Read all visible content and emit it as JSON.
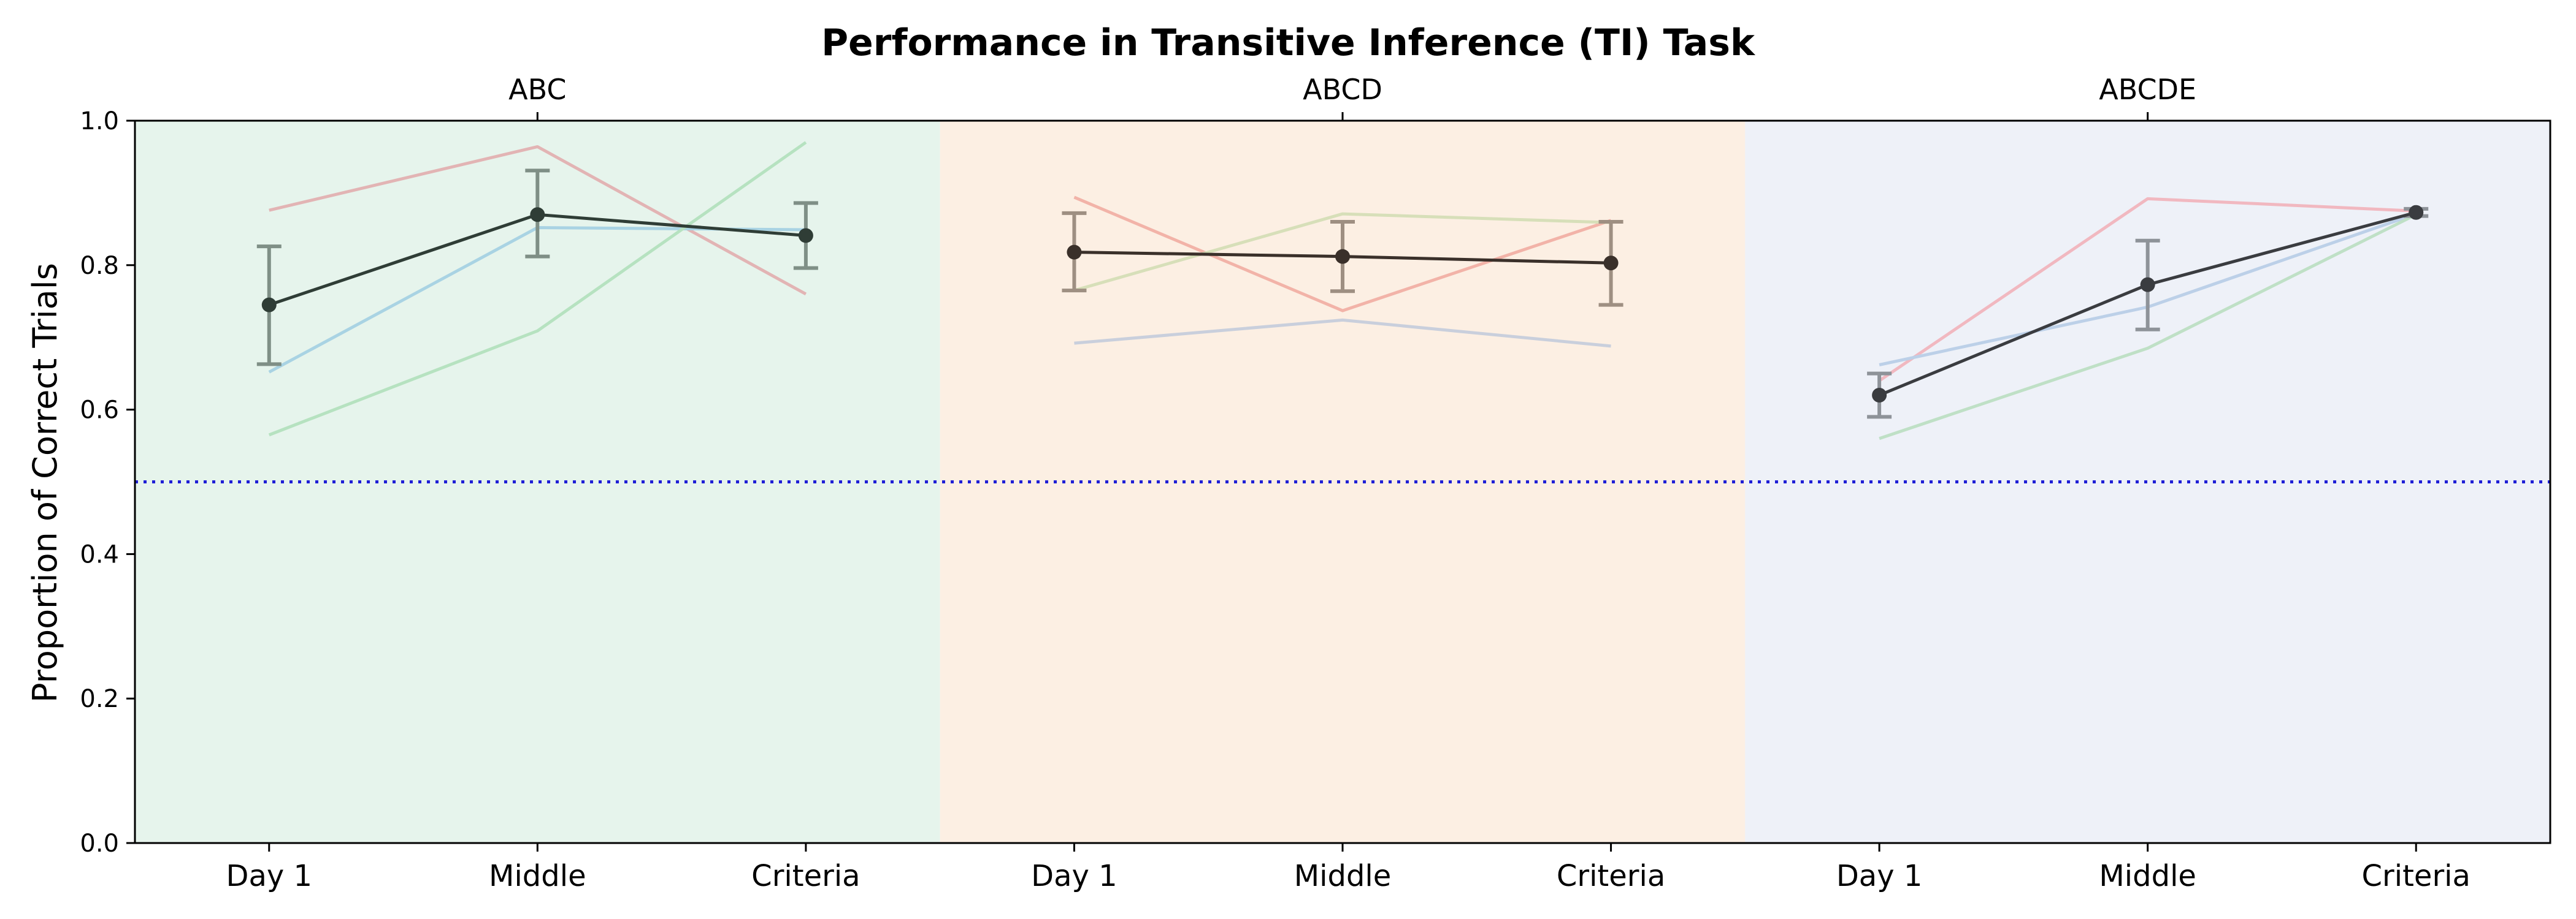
{
  "chart_data": {
    "type": "line",
    "title": "Performance in Transitive Inference (TI) Task",
    "ylabel": "Proportion of Correct Trials",
    "xlabel": "",
    "ylim": [
      0.0,
      1.0
    ],
    "yticks": [
      "0.0",
      "0.2",
      "0.4",
      "0.6",
      "0.8",
      "1.0"
    ],
    "grid": false,
    "reference_line": {
      "y": 0.5,
      "style": "dotted",
      "color": "#1f1fd6"
    },
    "panels": [
      {
        "label": "ABC",
        "background": "#e6f4ec",
        "mean_color": "#2f3d36",
        "errbar_color": "#7f8f86",
        "categories": [
          "Day 1",
          "Middle",
          "Criteria"
        ],
        "mean": [
          0.745,
          0.87,
          0.841
        ],
        "error": [
          [
            0.663,
            0.826
          ],
          [
            0.812,
            0.931
          ],
          [
            0.796,
            0.886
          ]
        ],
        "subjects": [
          {
            "color": "#e2b4b4",
            "values": [
              0.876,
              0.964,
              0.76
            ]
          },
          {
            "color": "#a9d3e3",
            "values": [
              0.652,
              0.852,
              0.849
            ]
          },
          {
            "color": "#b6e2c0",
            "values": [
              0.565,
              0.709,
              0.97
            ]
          }
        ]
      },
      {
        "label": "ABCD",
        "background": "#fcefe3",
        "mean_color": "#3a302a",
        "errbar_color": "#9e8f82",
        "categories": [
          "Day 1",
          "Middle",
          "Criteria"
        ],
        "mean": [
          0.818,
          0.812,
          0.803
        ],
        "error": [
          [
            0.765,
            0.872
          ],
          [
            0.764,
            0.86
          ],
          [
            0.745,
            0.86
          ]
        ],
        "subjects": [
          {
            "color": "#f2b3a8",
            "values": [
              0.894,
              0.737,
              0.862
            ]
          },
          {
            "color": "#d7dfb9",
            "values": [
              0.765,
              0.871,
              0.859
            ]
          },
          {
            "color": "#c9cfdc",
            "values": [
              0.692,
              0.724,
              0.688
            ]
          }
        ]
      },
      {
        "label": "ABCDE",
        "background": "#eef1f8",
        "mean_color": "#3a3c40",
        "errbar_color": "#8e9399",
        "categories": [
          "Day 1",
          "Middle",
          "Criteria"
        ],
        "mean": [
          0.62,
          0.773,
          0.873
        ],
        "error": [
          [
            0.59,
            0.65
          ],
          [
            0.711,
            0.834
          ],
          [
            0.868,
            0.878
          ]
        ],
        "subjects": [
          {
            "color": "#f1b8c0",
            "values": [
              0.64,
              0.892,
              0.875
            ]
          },
          {
            "color": "#bcd0e8",
            "values": [
              0.662,
              0.742,
              0.871
            ]
          },
          {
            "color": "#bfe0c6",
            "values": [
              0.56,
              0.685,
              0.87
            ]
          }
        ]
      }
    ]
  }
}
